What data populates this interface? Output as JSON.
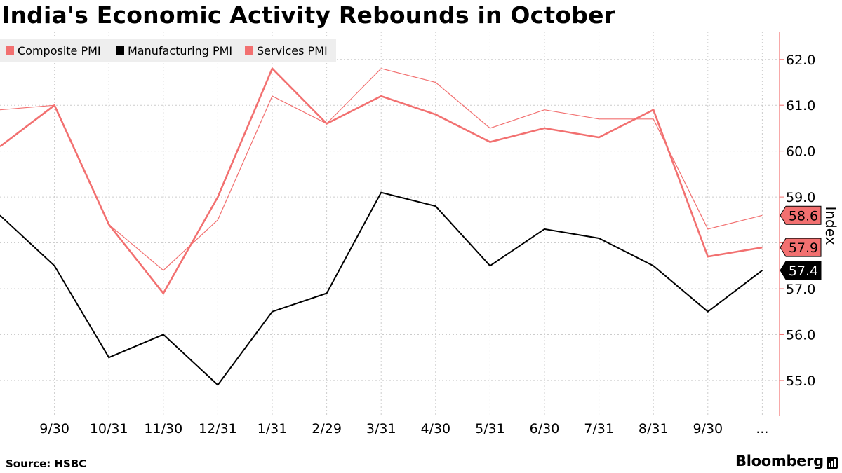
{
  "title": "India's Economic Activity Rebounds in October",
  "source": "Source: HSBC",
  "brand": "Bloomberg",
  "logo_icon": "bloomberg-terminal-icon",
  "colors": {
    "composite": "#f27070",
    "manufacturing": "#000000",
    "services": "#f27070",
    "axis": "#f27070",
    "grid": "#cccccc",
    "legend_bg": "#eeeeee"
  },
  "chart_data": {
    "type": "line",
    "title": "India's Economic Activity Rebounds in October",
    "xlabel": "",
    "ylabel": "Index",
    "ylim": [
      54.3,
      62.5
    ],
    "yticks": [
      55.0,
      56.0,
      57.0,
      58.0,
      59.0,
      60.0,
      61.0,
      62.0
    ],
    "ytick_labels": [
      "55.0",
      "56.0",
      "57.0",
      "58.0",
      "59.0",
      "60.0",
      "61.0",
      "62.0"
    ],
    "x_tick_labels": [
      "9/30",
      "10/31",
      "11/30",
      "12/31",
      "1/31",
      "2/29",
      "3/31",
      "4/30",
      "5/31",
      "6/30",
      "7/31",
      "8/31",
      "9/30",
      "..."
    ],
    "grid": true,
    "legend_position": "top-left",
    "series": [
      {
        "name": "Composite PMI",
        "values": [
          60.1,
          61.0,
          58.4,
          56.9,
          59.0,
          61.8,
          60.6,
          61.2,
          60.8,
          60.2,
          60.5,
          60.3,
          60.9,
          57.7,
          57.9
        ],
        "end_label": "57.9"
      },
      {
        "name": "Manufacturing PMI",
        "values": [
          58.6,
          57.5,
          55.5,
          56.0,
          54.9,
          56.5,
          56.9,
          59.1,
          58.8,
          57.5,
          58.3,
          58.1,
          57.5,
          56.5,
          57.4
        ],
        "end_label": "57.4"
      },
      {
        "name": "Services PMI",
        "values": [
          60.9,
          61.0,
          58.4,
          57.4,
          58.5,
          61.2,
          60.6,
          61.8,
          61.5,
          60.5,
          60.9,
          60.7,
          60.7,
          58.3,
          58.6
        ],
        "end_label": "58.6"
      }
    ]
  }
}
